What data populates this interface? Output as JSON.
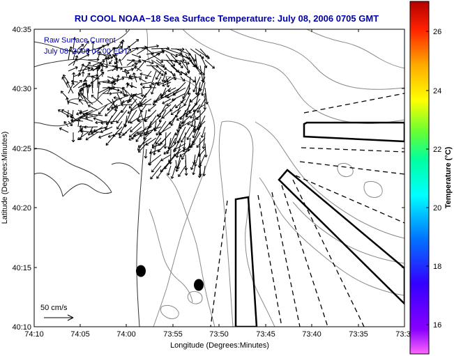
{
  "title": "RU COOL  NOAA−18  Sea Surface Temperature:  July 08, 2006 0705 GMT",
  "map": {
    "xlabel": "Longitude (Degrees:Minutes)",
    "ylabel": "Latitude (Degrees:Minutes)",
    "x_ticks": [
      "74:10",
      "74:05",
      "74:00",
      "73:55",
      "73:50",
      "73:45",
      "73:40",
      "73:35",
      "73:3"
    ],
    "y_ticks": [
      "40:35",
      "40:30",
      "40:25",
      "40:20",
      "40:15",
      "40:10"
    ],
    "annotation_line1": "Raw Surface Current",
    "annotation_line2": "July 08, 2006 07:00 EDT",
    "scale_label": "50 cm/s"
  },
  "colorbar": {
    "label": "Temperature (°C)",
    "ticks": [
      "26",
      "24",
      "22",
      "20",
      "18",
      "16"
    ],
    "min": 15,
    "max": 27.5
  }
}
